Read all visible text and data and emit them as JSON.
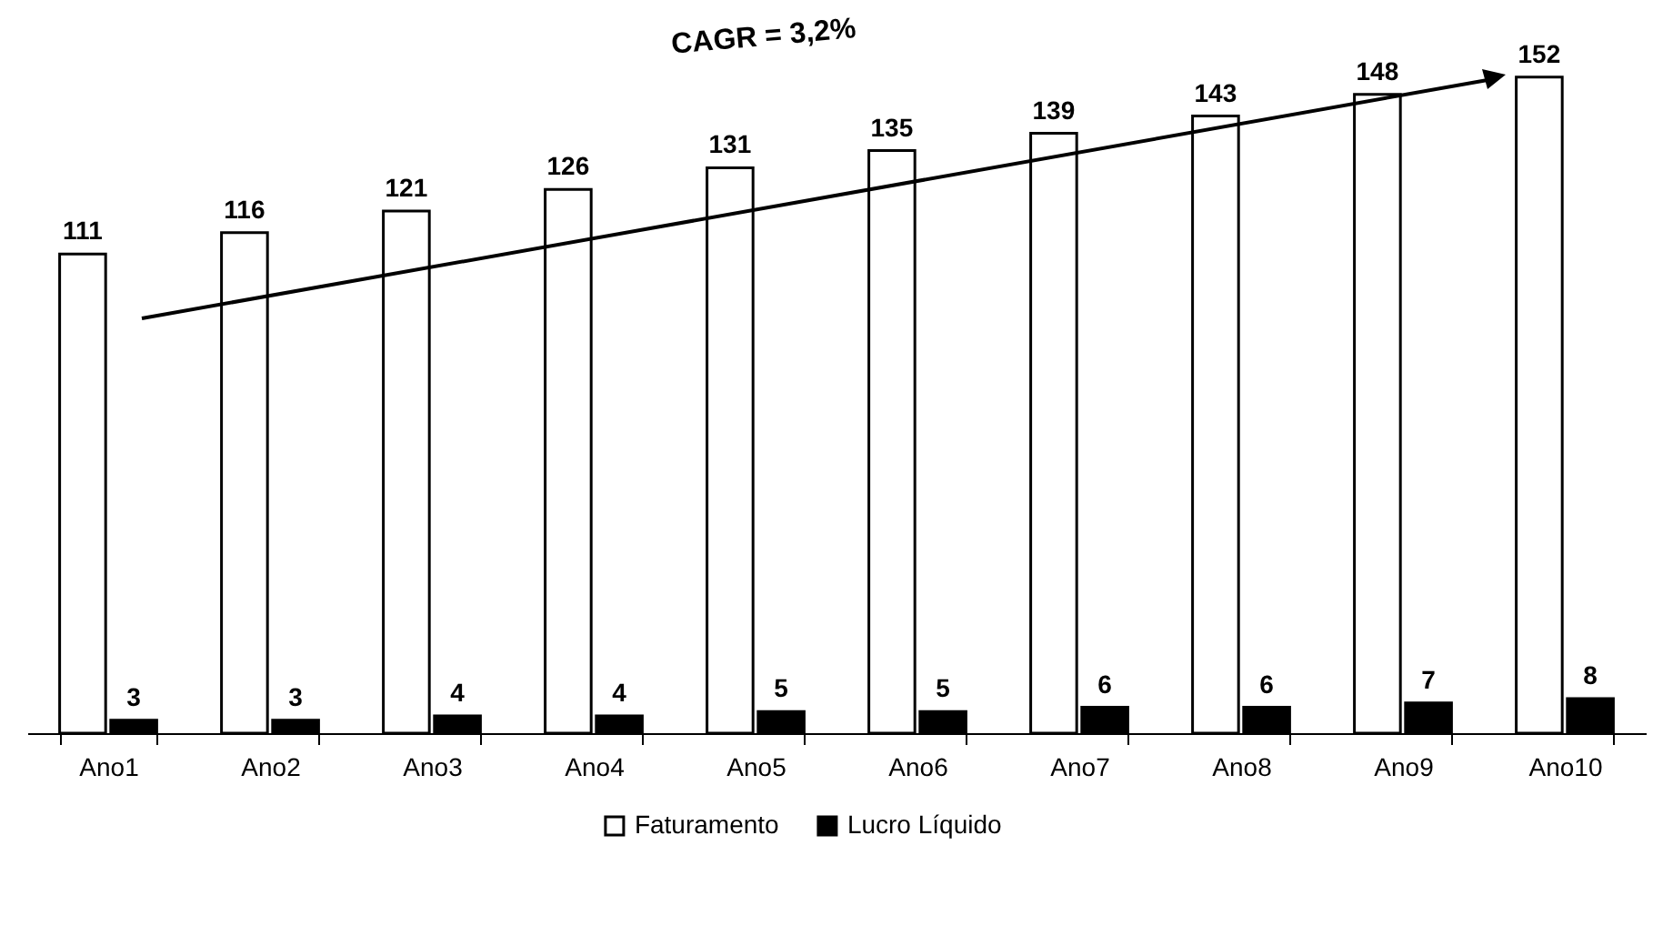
{
  "chart_data": {
    "type": "bar",
    "categories": [
      "Ano1",
      "Ano2",
      "Ano3",
      "Ano4",
      "Ano5",
      "Ano6",
      "Ano7",
      "Ano8",
      "Ano9",
      "Ano10"
    ],
    "series": [
      {
        "name": "Faturamento",
        "color": "#ffffff",
        "values": [
          111,
          116,
          121,
          126,
          131,
          135,
          139,
          143,
          148,
          152
        ]
      },
      {
        "name": "Lucro Líquido",
        "color": "#000000",
        "values": [
          3,
          3,
          4,
          4,
          5,
          5,
          6,
          6,
          7,
          8
        ]
      }
    ],
    "data_labels": true,
    "legend": "bottom",
    "grid": false,
    "annotations": [
      "CAGR = 3,2%"
    ]
  }
}
